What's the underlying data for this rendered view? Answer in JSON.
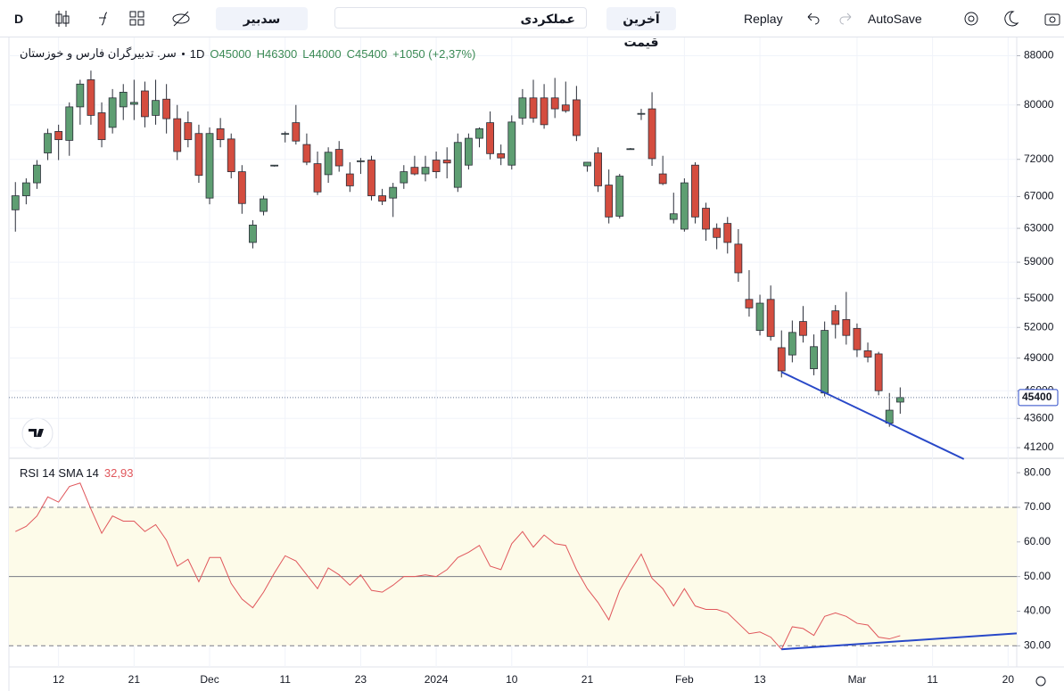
{
  "toolbar": {
    "interval": "D",
    "search": "سدبیر",
    "template": "عملکردی",
    "price_type": "آخرین قیمت",
    "replay": "Replay",
    "autosave": "AutoSave"
  },
  "chart_data": [
    {
      "type": "candlestick",
      "symbol": "سر. تدبیرگران فارس و خوزستان",
      "interval": "1D",
      "ohlc_text": [
        "O45000",
        "H46300",
        "L44000",
        "C45400",
        "+1050 (+2,37%)"
      ],
      "up_color": "#5e9e72",
      "down_color": "#d44d3f",
      "open": [
        65300,
        67100,
        68800,
        72900,
        76000,
        74700,
        79700,
        84000,
        78800,
        76600,
        79700,
        80100,
        82200,
        78400,
        80900,
        77900,
        77300,
        75700,
        66800,
        76400,
        74900,
        70300,
        61300,
        65100,
        71100,
        75600,
        77300,
        74100,
        71400,
        69900,
        73400,
        70000,
        71700,
        71900,
        67100,
        66800,
        68800,
        70900,
        70000,
        71900,
        71900,
        68200,
        71200,
        75000,
        77300,
        72800,
        71200,
        78000,
        81100,
        81100,
        81100,
        80000,
        80800,
        71100,
        72900,
        68500,
        64500,
        73500,
        78600,
        79400,
        70000,
        64100,
        62900,
        71200,
        65500,
        63000,
        63600,
        61100,
        54900,
        51700,
        54900,
        50000,
        49300,
        52600,
        48000,
        45800,
        53700,
        52800,
        51900,
        49700,
        49400,
        43200,
        45000
      ],
      "high": [
        68900,
        69400,
        71900,
        76400,
        77000,
        80400,
        84000,
        85500,
        80400,
        82500,
        83300,
        84000,
        83700,
        84000,
        83300,
        80000,
        79000,
        77000,
        76600,
        78000,
        75700,
        71200,
        64000,
        67100,
        71200,
        76000,
        80000,
        75700,
        73100,
        73700,
        74600,
        71600,
        72200,
        72500,
        68000,
        68800,
        71200,
        72500,
        72500,
        73100,
        73700,
        75700,
        75700,
        76600,
        79000,
        74100,
        78400,
        82500,
        84000,
        83300,
        84300,
        83700,
        83000,
        71600,
        73700,
        70600,
        70000,
        73600,
        79400,
        82000,
        72500,
        67500,
        69400,
        71600,
        66200,
        63600,
        64400,
        62900,
        58100,
        55400,
        56400,
        51700,
        52700,
        54200,
        51300,
        52600,
        54300,
        55700,
        52400,
        50500,
        49600,
        45800,
        46300
      ],
      "low": [
        62600,
        66000,
        68000,
        71900,
        71900,
        72500,
        77000,
        77000,
        73700,
        75700,
        77700,
        77700,
        76600,
        77000,
        75700,
        71900,
        73700,
        68800,
        66000,
        73700,
        69400,
        64800,
        60600,
        64600,
        71000,
        74400,
        74100,
        71200,
        67200,
        68800,
        70300,
        67600,
        70000,
        66500,
        65900,
        64400,
        68000,
        69800,
        69000,
        69400,
        69400,
        67600,
        70600,
        73700,
        72000,
        71200,
        70600,
        77000,
        77300,
        76400,
        78000,
        78800,
        74600,
        70300,
        67600,
        63600,
        64200,
        73400,
        77700,
        71100,
        68500,
        63600,
        62600,
        63600,
        61500,
        60500,
        60000,
        56800,
        53100,
        51200,
        50700,
        47200,
        48600,
        50500,
        47400,
        45500,
        50900,
        50300,
        49100,
        48600,
        45600,
        42900,
        44000
      ],
      "close": [
        67100,
        68800,
        71200,
        75700,
        74800,
        79700,
        83300,
        78400,
        74800,
        81100,
        82000,
        80400,
        78200,
        80700,
        77900,
        73100,
        74800,
        69800,
        75700,
        74800,
        70300,
        66100,
        63400,
        66700,
        71200,
        75700,
        74600,
        71600,
        67600,
        73000,
        71100,
        68400,
        71800,
        67100,
        66400,
        68200,
        70300,
        70000,
        70900,
        70300,
        71500,
        74400,
        75000,
        76400,
        72800,
        72200,
        77400,
        81100,
        78000,
        77000,
        79400,
        79100,
        75400,
        71600,
        68400,
        64400,
        69700,
        73500,
        78700,
        72100,
        68700,
        64800,
        68800,
        64400,
        62900,
        61900,
        61300,
        57800,
        54000,
        54500,
        51100,
        47800,
        51500,
        51200,
        50100,
        51700,
        52300,
        51200,
        49800,
        49100,
        46000,
        44300,
        45400
      ],
      "log": true,
      "ylim": [
        40500,
        90700
      ],
      "yticks": [
        41200,
        43600,
        46000,
        49000,
        52000,
        55000,
        59000,
        63000,
        67000,
        72000,
        80000,
        88000
      ],
      "xlim": [
        -0.6,
        92.8
      ],
      "last_price": 45400,
      "grid": true,
      "trendlines": [
        {
          "x": [
            71,
            87.9
          ],
          "y": [
            47700,
            40300
          ],
          "color": "#2848c8"
        }
      ]
    },
    {
      "type": "line",
      "title": "RSI 14 SMA 14",
      "color": "#e0565b",
      "values": [
        63,
        64.5,
        67.5,
        73,
        71.5,
        76,
        77,
        69.5,
        62.5,
        67.5,
        66,
        66,
        63,
        65,
        60.5,
        53,
        55,
        48.5,
        55.5,
        55.5,
        48,
        43.5,
        41,
        45.5,
        51,
        56,
        54.5,
        50.5,
        46.5,
        52.5,
        50.5,
        47.5,
        50.5,
        46,
        45.5,
        47.5,
        50,
        50,
        50.5,
        50,
        52,
        55.5,
        57,
        59,
        53,
        52,
        59.5,
        63,
        58.5,
        62,
        59.5,
        59,
        52,
        46.5,
        42.5,
        37.5,
        46,
        51.5,
        56.5,
        49.5,
        46.5,
        41.5,
        46.5,
        41.5,
        40.5,
        40.5,
        39.5,
        36.5,
        33.5,
        34,
        32.5,
        29,
        35.5,
        35,
        33,
        38.5,
        39.5,
        38.5,
        36.5,
        36,
        32.5,
        32,
        32.93
      ],
      "current": {
        "value": 32.93,
        "label": "32,93"
      },
      "ylim": [
        23.9,
        83.9
      ],
      "yticks": [
        {
          "value": 30,
          "label": "30.00"
        },
        {
          "value": 40,
          "label": "40.00"
        },
        {
          "value": 50,
          "label": "50.00"
        },
        {
          "value": 60,
          "label": "60.00"
        },
        {
          "value": 70,
          "label": "70.00"
        },
        {
          "value": 80,
          "label": "80.00"
        }
      ],
      "bands": [
        30,
        70
      ],
      "midline": 50,
      "band_color": "#fdfbe9",
      "xlim": [
        -0.6,
        92.8
      ],
      "xticks": [
        {
          "value": 4,
          "label": "12"
        },
        {
          "value": 11,
          "label": "21"
        },
        {
          "value": 18,
          "label": "Dec"
        },
        {
          "value": 25,
          "label": "11"
        },
        {
          "value": 32,
          "label": "23"
        },
        {
          "value": 39,
          "label": "2024"
        },
        {
          "value": 46,
          "label": "10"
        },
        {
          "value": 53,
          "label": "21"
        },
        {
          "value": 62,
          "label": "Feb"
        },
        {
          "value": 69,
          "label": "13"
        },
        {
          "value": 78,
          "label": "Mar"
        },
        {
          "value": 85,
          "label": "11"
        },
        {
          "value": 92,
          "label": "20"
        }
      ],
      "trendlines": [
        {
          "x": [
            71,
            92.8
          ],
          "y": [
            29,
            33.6
          ],
          "color": "#2848c8"
        }
      ]
    }
  ]
}
